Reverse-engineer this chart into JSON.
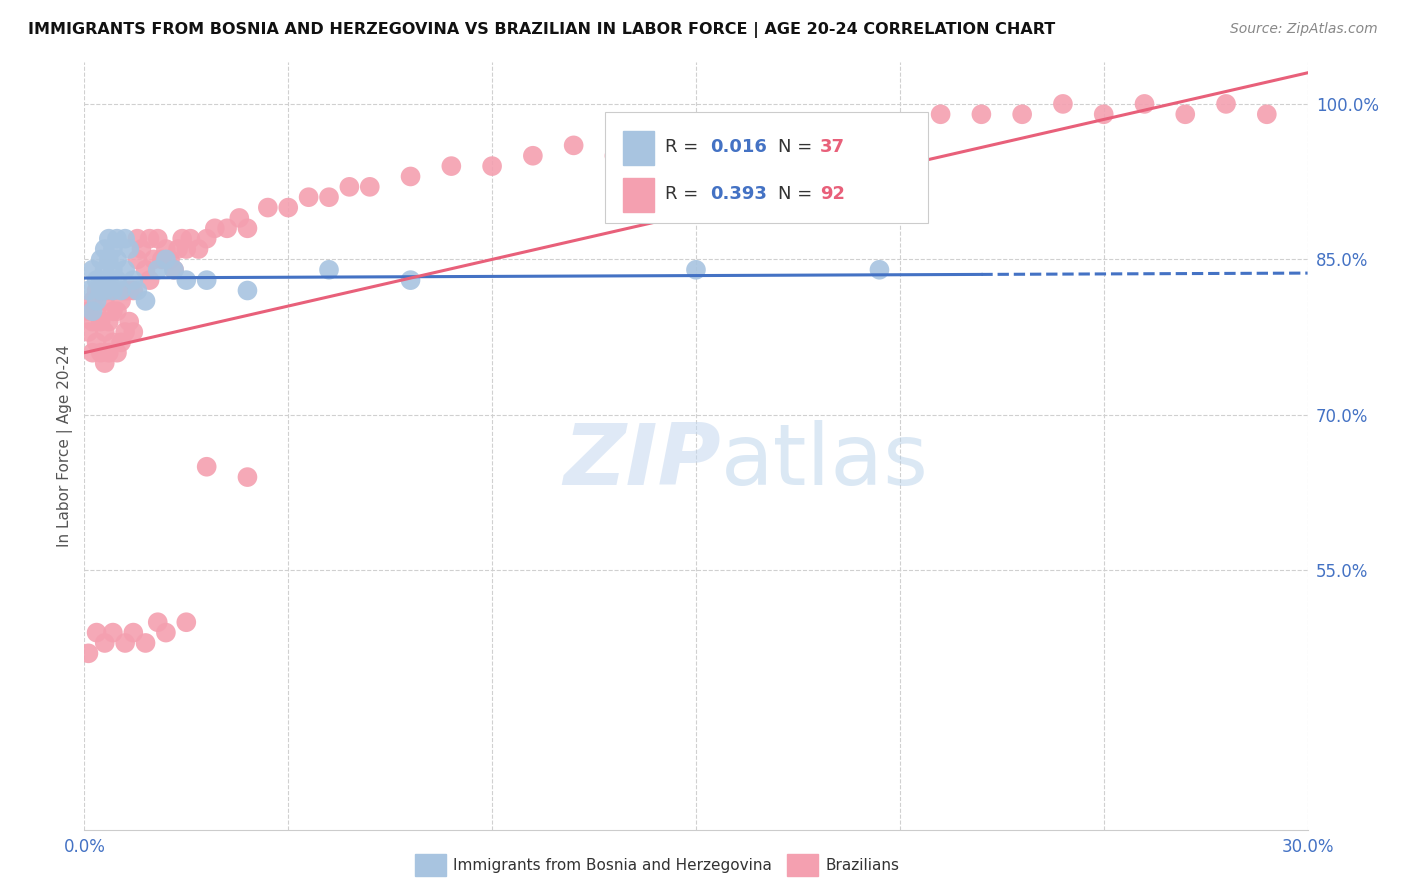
{
  "title": "IMMIGRANTS FROM BOSNIA AND HERZEGOVINA VS BRAZILIAN IN LABOR FORCE | AGE 20-24 CORRELATION CHART",
  "source_text": "Source: ZipAtlas.com",
  "ylabel": "In Labor Force | Age 20-24",
  "xlim": [
    0.0,
    0.3
  ],
  "ylim": [
    0.3,
    1.04
  ],
  "y_tick_values_right": [
    0.55,
    0.7,
    0.85,
    1.0
  ],
  "y_tick_labels_right": [
    "55.0%",
    "70.0%",
    "85.0%",
    "100.0%"
  ],
  "bosnia_color": "#a8c4e0",
  "brazil_color": "#f4a0b0",
  "bosnia_line_color": "#4472c4",
  "brazil_line_color": "#e8607a",
  "watermark_zip": "ZIP",
  "watermark_atlas": "atlas",
  "legend_R_color": "#4472c4",
  "legend_N_color": "#e8607a",
  "bosnia_x": [
    0.001,
    0.002,
    0.002,
    0.003,
    0.003,
    0.004,
    0.004,
    0.004,
    0.005,
    0.005,
    0.005,
    0.006,
    0.006,
    0.006,
    0.007,
    0.007,
    0.007,
    0.008,
    0.008,
    0.008,
    0.009,
    0.01,
    0.01,
    0.011,
    0.012,
    0.013,
    0.015,
    0.018,
    0.02,
    0.022,
    0.025,
    0.03,
    0.04,
    0.06,
    0.08,
    0.15,
    0.195
  ],
  "bosnia_y": [
    0.82,
    0.84,
    0.8,
    0.83,
    0.81,
    0.85,
    0.83,
    0.82,
    0.86,
    0.84,
    0.82,
    0.87,
    0.85,
    0.83,
    0.86,
    0.84,
    0.82,
    0.87,
    0.85,
    0.83,
    0.82,
    0.87,
    0.84,
    0.86,
    0.83,
    0.82,
    0.81,
    0.84,
    0.85,
    0.84,
    0.83,
    0.83,
    0.82,
    0.84,
    0.83,
    0.84,
    0.84
  ],
  "brazil_x": [
    0.001,
    0.001,
    0.002,
    0.002,
    0.002,
    0.003,
    0.003,
    0.003,
    0.004,
    0.004,
    0.004,
    0.005,
    0.005,
    0.005,
    0.006,
    0.006,
    0.006,
    0.007,
    0.007,
    0.007,
    0.008,
    0.008,
    0.009,
    0.009,
    0.01,
    0.01,
    0.011,
    0.011,
    0.012,
    0.012,
    0.013,
    0.013,
    0.014,
    0.015,
    0.016,
    0.016,
    0.017,
    0.018,
    0.019,
    0.02,
    0.021,
    0.022,
    0.023,
    0.024,
    0.025,
    0.026,
    0.028,
    0.03,
    0.032,
    0.035,
    0.038,
    0.04,
    0.045,
    0.05,
    0.055,
    0.06,
    0.065,
    0.07,
    0.08,
    0.09,
    0.1,
    0.11,
    0.12,
    0.13,
    0.14,
    0.15,
    0.16,
    0.17,
    0.18,
    0.19,
    0.2,
    0.21,
    0.22,
    0.23,
    0.24,
    0.25,
    0.26,
    0.27,
    0.28,
    0.29,
    0.001,
    0.003,
    0.005,
    0.007,
    0.01,
    0.012,
    0.015,
    0.018,
    0.02,
    0.025,
    0.03,
    0.04
  ],
  "brazil_y": [
    0.78,
    0.8,
    0.76,
    0.79,
    0.81,
    0.77,
    0.8,
    0.82,
    0.76,
    0.79,
    0.82,
    0.75,
    0.78,
    0.81,
    0.76,
    0.79,
    0.82,
    0.77,
    0.8,
    0.82,
    0.76,
    0.8,
    0.77,
    0.81,
    0.78,
    0.82,
    0.79,
    0.82,
    0.78,
    0.82,
    0.85,
    0.87,
    0.86,
    0.84,
    0.87,
    0.83,
    0.85,
    0.87,
    0.85,
    0.86,
    0.85,
    0.84,
    0.86,
    0.87,
    0.86,
    0.87,
    0.86,
    0.87,
    0.88,
    0.88,
    0.89,
    0.88,
    0.9,
    0.9,
    0.91,
    0.91,
    0.92,
    0.92,
    0.93,
    0.94,
    0.94,
    0.95,
    0.96,
    0.95,
    0.96,
    0.95,
    0.96,
    0.97,
    0.97,
    0.98,
    0.98,
    0.99,
    0.99,
    0.99,
    1.0,
    0.99,
    1.0,
    0.99,
    1.0,
    0.99,
    0.47,
    0.49,
    0.48,
    0.49,
    0.48,
    0.49,
    0.48,
    0.5,
    0.49,
    0.5,
    0.65,
    0.64
  ]
}
